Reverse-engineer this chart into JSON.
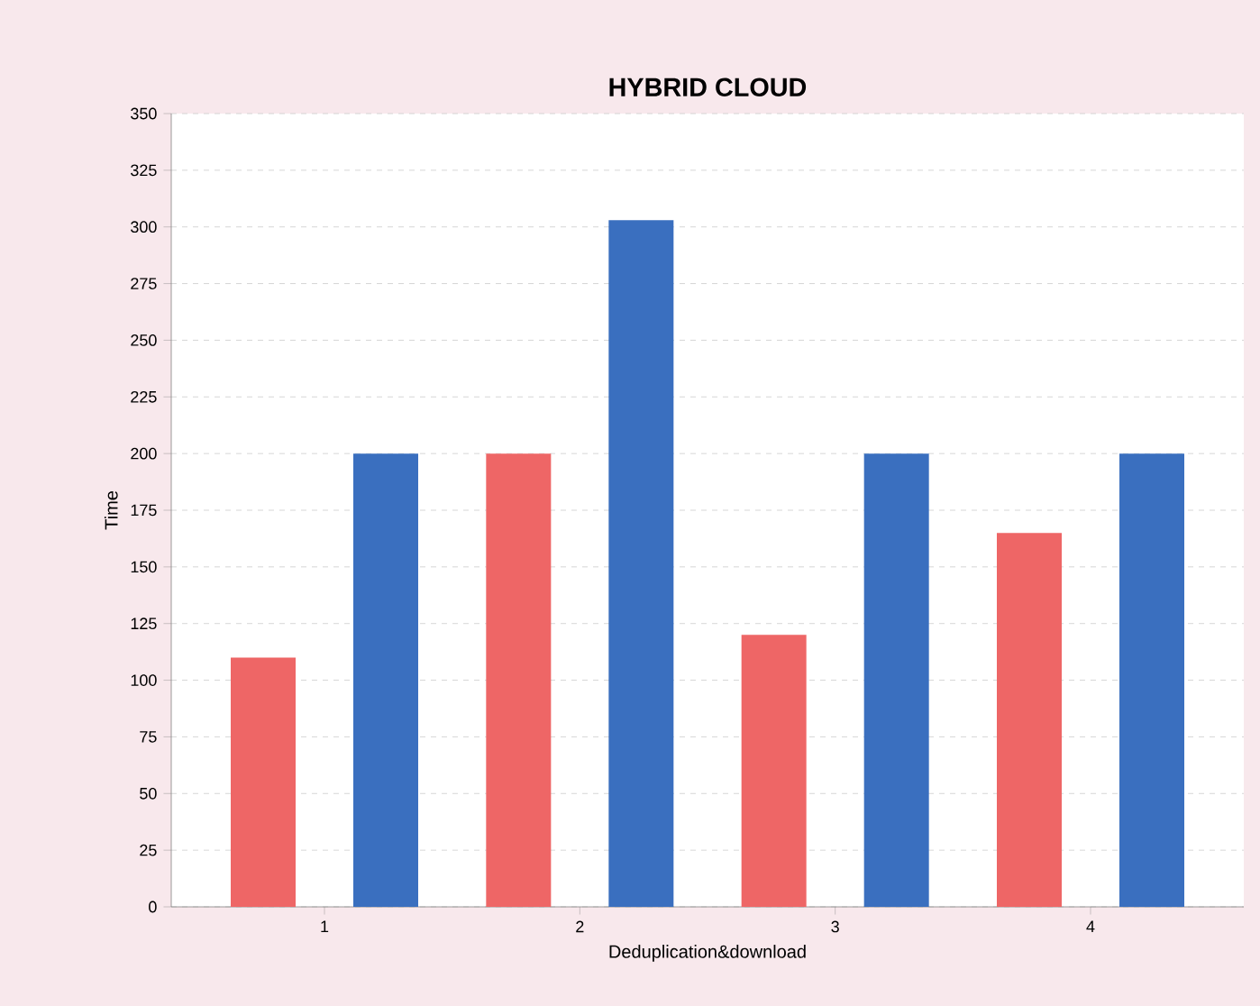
{
  "chart_data": {
    "type": "bar",
    "title": "HYBRID CLOUD",
    "xlabel": "Deduplication&download",
    "ylabel": "Time",
    "categories": [
      "1",
      "2",
      "3",
      "4"
    ],
    "series": [
      {
        "color": "#ee6666",
        "values": [
          110,
          200,
          120,
          165
        ]
      },
      {
        "color": "#3a6fbf",
        "values": [
          200,
          303,
          200,
          200
        ]
      }
    ],
    "ylim": [
      0,
      350
    ],
    "yticks": [
      0,
      25,
      50,
      75,
      100,
      125,
      150,
      175,
      200,
      225,
      250,
      275,
      300,
      325,
      350
    ],
    "grid": "y"
  }
}
